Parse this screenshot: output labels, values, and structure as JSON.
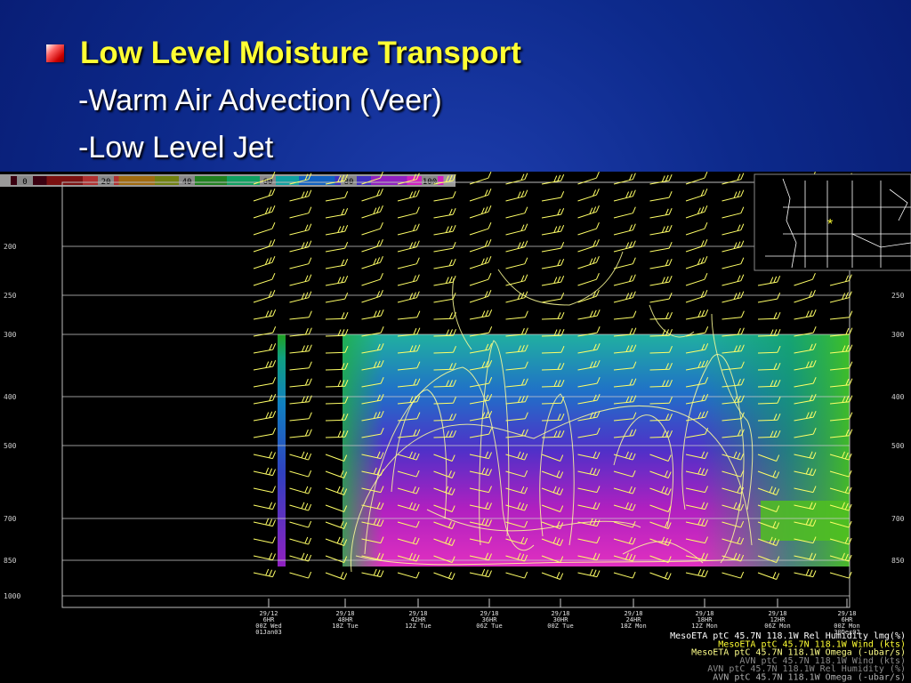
{
  "slide": {
    "title": "Low Level Moisture Transport",
    "bullets": [
      "-Warm Air Advection (Veer)",
      "-Low Level Jet"
    ]
  },
  "colors": {
    "background": "#0d2a8c",
    "title": "#ffff33",
    "text": "#ffffff",
    "wind": "#ffff66",
    "map": "#ffffff"
  },
  "chart_data": {
    "type": "heatmap",
    "colorbar": {
      "ticks": [
        "0",
        "20",
        "40",
        "60",
        "80",
        "100"
      ],
      "colors": [
        "#3a0010",
        "#7a1010",
        "#b03030",
        "#a06a10",
        "#708010",
        "#208020",
        "#10a060",
        "#10a0a0",
        "#1060c0",
        "#4030c0",
        "#9020c0",
        "#d020c0"
      ]
    },
    "y_levels": [
      {
        "label": "200",
        "value": 200
      },
      {
        "label": "250",
        "value": 250
      },
      {
        "label": "300",
        "value": 300
      },
      {
        "label": "400",
        "value": 400
      },
      {
        "label": "500",
        "value": 500
      },
      {
        "label": "700",
        "value": 700
      },
      {
        "label": "850",
        "value": 850
      },
      {
        "label": "1000",
        "value": 1000
      }
    ],
    "time_labels": [
      {
        "l1": "29/12",
        "l2": "6HR",
        "l3": "00Z Wed",
        "l4": "01Jan03"
      },
      {
        "l1": "29/18",
        "l2": "48HR",
        "l3": "18Z Tue",
        "l4": ""
      },
      {
        "l1": "29/18",
        "l2": "42HR",
        "l3": "12Z Tue",
        "l4": ""
      },
      {
        "l1": "29/18",
        "l2": "36HR",
        "l3": "06Z Tue",
        "l4": ""
      },
      {
        "l1": "29/18",
        "l2": "30HR",
        "l3": "00Z Tue",
        "l4": ""
      },
      {
        "l1": "29/18",
        "l2": "24HR",
        "l3": "18Z Mon",
        "l4": ""
      },
      {
        "l1": "29/18",
        "l2": "18HR",
        "l3": "12Z Mon",
        "l4": ""
      },
      {
        "l1": "29/18",
        "l2": "12HR",
        "l3": "06Z Mon",
        "l4": ""
      },
      {
        "l1": "29/18",
        "l2": "6HR",
        "l3": "00Z Mon",
        "l4": "30Dec02"
      }
    ],
    "legend": [
      {
        "text": "MesoETA ptC 45.7N 118.1W Rel Humidity lmg(%)",
        "color": "#ffffff"
      },
      {
        "text": "MesoETA ptC 45.7N 118.1W Wind (kts)",
        "color": "#ffff33"
      },
      {
        "text": "MesoETA ptC 45.7N 118.1W Omega (-ubar/s)",
        "color": "#ffff88"
      },
      {
        "text": "AVN ptC 45.7N 118.1W Wind (kts)",
        "color": "#8a8a8a"
      },
      {
        "text": "AVN ptC 45.7N 118.1W Rel Humidity (%)",
        "color": "#8a8a8a"
      },
      {
        "text": "AVN ptC 45.7N 118.1W Omega (-ubar/s)",
        "color": "#b0b0b0"
      }
    ]
  }
}
